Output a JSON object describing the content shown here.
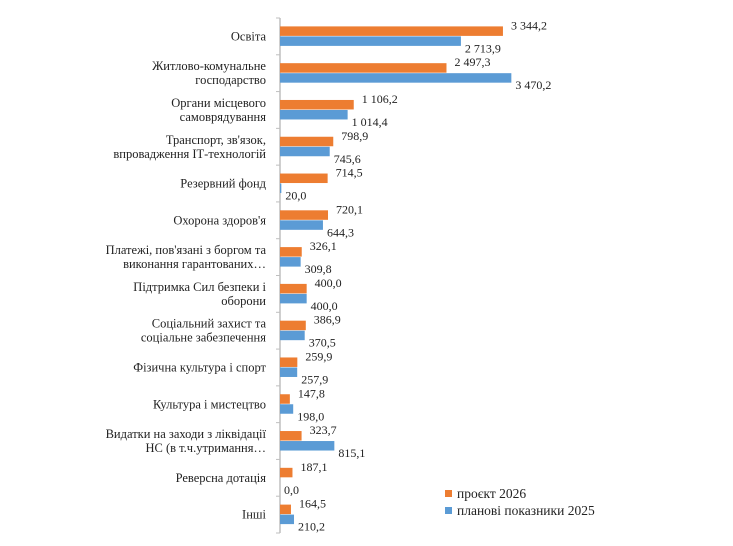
{
  "chart_data": {
    "type": "bar",
    "orientation": "horizontal",
    "title": "",
    "xlabel": "",
    "ylabel": "",
    "xlim": [
      0,
      3500
    ],
    "grid": false,
    "legend_position": "bottom-right",
    "categories": [
      [
        "Освіта"
      ],
      [
        "Житлово-комунальне",
        "господарство"
      ],
      [
        "Органи місцевого",
        "самоврядування"
      ],
      [
        "Транспорт, зв'язок,",
        "впровадження ІТ-технологій"
      ],
      [
        "Резервний фонд"
      ],
      [
        "Охорона здоров'я"
      ],
      [
        "Платежі,  пов'язані з боргом та",
        "виконання гарантованих…"
      ],
      [
        "Підтримка Сил безпеки і",
        "оборони"
      ],
      [
        "Соціальний захист та",
        "соціальне забезпечення"
      ],
      [
        "Фізична культура і спорт"
      ],
      [
        "Культура і мистецтво"
      ],
      [
        "Видатки на заходи з ліквідації",
        "НС (в т.ч.утримання…"
      ],
      [
        "Реверсна дотація"
      ],
      [
        "Інші"
      ]
    ],
    "series": [
      {
        "name": "проєкт 2026",
        "color": "#ED7D31",
        "values": [
          3344.2,
          2497.3,
          1106.2,
          798.9,
          714.5,
          720.1,
          326.1,
          400.0,
          386.9,
          259.9,
          147.8,
          323.7,
          187.1,
          164.5
        ],
        "labels": [
          "3 344,2",
          "2 497,3",
          "1 106,2",
          "798,9",
          "714,5",
          "720,1",
          "326,1",
          "400,0",
          "386,9",
          "259,9",
          "147,8",
          "323,7",
          "187,1",
          "164,5"
        ]
      },
      {
        "name": "планові показники 2025",
        "color": "#5B9BD5",
        "values": [
          2713.9,
          3470.2,
          1014.4,
          745.6,
          20.0,
          644.3,
          309.8,
          400.0,
          370.5,
          257.9,
          198.0,
          815.1,
          0.0,
          210.2
        ],
        "labels": [
          "2 713,9",
          "3 470,2",
          "1 014,4",
          "745,6",
          "20,0",
          "644,3",
          "309,8",
          "400,0",
          "370,5",
          "257,9",
          "198,0",
          "815,1",
          "0,0",
          "210,2"
        ]
      }
    ]
  }
}
